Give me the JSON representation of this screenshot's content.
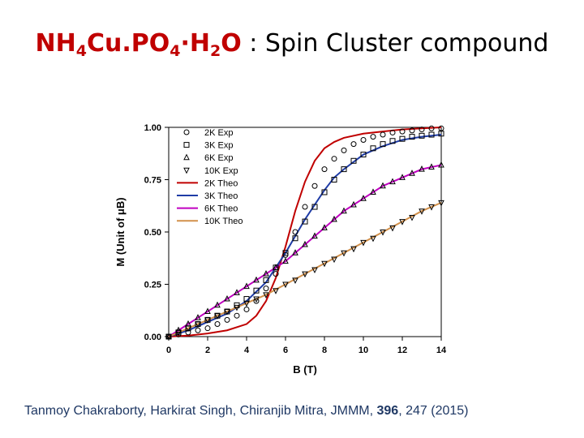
{
  "slide": {
    "title_formula": {
      "parts": [
        {
          "text": "NH",
          "sub": "4"
        },
        {
          "text": "Cu.PO",
          "sub": "4"
        },
        {
          "text": "·H",
          "sub": "2"
        },
        {
          "text": "O",
          "sub": ""
        }
      ]
    },
    "title_rest": " : Spin Cluster compound",
    "citation": {
      "authors": "Tanmoy Chakraborty, Harkirat Singh, Chiranjib Mitra, JMMM, ",
      "volume": "396",
      "pages": ", 247 (2015)"
    },
    "colors": {
      "title_formula": "#c00000",
      "citation": "#1f3864"
    }
  },
  "chart_data": {
    "type": "line",
    "xlabel": "B (T)",
    "ylabel": "M (Unit of μB)",
    "xlim": [
      0,
      14
    ],
    "ylim": [
      0,
      1
    ],
    "xticks": [
      0,
      2,
      4,
      6,
      8,
      10,
      12,
      14
    ],
    "yticks": [
      0.0,
      0.25,
      0.5,
      0.75,
      1.0
    ],
    "legend_position": "top-left",
    "series": [
      {
        "name": "2K Exp",
        "kind": "markers",
        "marker": "circle",
        "color": "#000000",
        "x": [
          0,
          0.5,
          1,
          1.5,
          2,
          2.5,
          3,
          3.5,
          4,
          4.5,
          5,
          5.5,
          6,
          6.5,
          7,
          7.5,
          8,
          8.5,
          9,
          9.5,
          10,
          10.5,
          11,
          11.5,
          12,
          12.5,
          13,
          13.5,
          14
        ],
        "y": [
          0,
          0.01,
          0.02,
          0.03,
          0.04,
          0.06,
          0.08,
          0.1,
          0.13,
          0.17,
          0.23,
          0.3,
          0.39,
          0.5,
          0.62,
          0.72,
          0.8,
          0.85,
          0.89,
          0.92,
          0.94,
          0.955,
          0.965,
          0.975,
          0.98,
          0.985,
          0.99,
          0.995,
          0.995
        ]
      },
      {
        "name": "3K Exp",
        "kind": "markers",
        "marker": "square",
        "color": "#000000",
        "x": [
          0,
          0.5,
          1,
          1.5,
          2,
          2.5,
          3,
          3.5,
          4,
          4.5,
          5,
          5.5,
          6,
          6.5,
          7,
          7.5,
          8,
          8.5,
          9,
          9.5,
          10,
          10.5,
          11,
          11.5,
          12,
          12.5,
          13,
          13.5,
          14
        ],
        "y": [
          0,
          0.02,
          0.04,
          0.06,
          0.08,
          0.1,
          0.12,
          0.15,
          0.18,
          0.22,
          0.27,
          0.33,
          0.4,
          0.47,
          0.55,
          0.62,
          0.69,
          0.75,
          0.8,
          0.84,
          0.87,
          0.9,
          0.92,
          0.935,
          0.945,
          0.955,
          0.96,
          0.965,
          0.97
        ]
      },
      {
        "name": "6K Exp",
        "kind": "markers",
        "marker": "triangle-up",
        "color": "#000000",
        "x": [
          0,
          0.5,
          1,
          1.5,
          2,
          2.5,
          3,
          3.5,
          4,
          4.5,
          5,
          5.5,
          6,
          6.5,
          7,
          7.5,
          8,
          8.5,
          9,
          9.5,
          10,
          10.5,
          11,
          11.5,
          12,
          12.5,
          13,
          13.5,
          14
        ],
        "y": [
          0,
          0.03,
          0.06,
          0.09,
          0.12,
          0.15,
          0.18,
          0.21,
          0.24,
          0.27,
          0.3,
          0.33,
          0.36,
          0.4,
          0.44,
          0.48,
          0.52,
          0.56,
          0.6,
          0.63,
          0.66,
          0.69,
          0.72,
          0.74,
          0.76,
          0.78,
          0.8,
          0.81,
          0.82
        ]
      },
      {
        "name": "10K Exp",
        "kind": "markers",
        "marker": "triangle-down",
        "color": "#000000",
        "x": [
          0,
          0.5,
          1,
          1.5,
          2,
          2.5,
          3,
          3.5,
          4,
          4.5,
          5,
          5.5,
          6,
          6.5,
          7,
          7.5,
          8,
          8.5,
          9,
          9.5,
          10,
          10.5,
          11,
          11.5,
          12,
          12.5,
          13,
          13.5,
          14
        ],
        "y": [
          0,
          0.02,
          0.04,
          0.06,
          0.08,
          0.1,
          0.12,
          0.14,
          0.16,
          0.18,
          0.2,
          0.22,
          0.25,
          0.27,
          0.3,
          0.32,
          0.35,
          0.37,
          0.4,
          0.42,
          0.45,
          0.47,
          0.5,
          0.52,
          0.55,
          0.57,
          0.6,
          0.62,
          0.64
        ]
      },
      {
        "name": "2K Theo",
        "kind": "line",
        "color": "#c00000",
        "x": [
          0,
          1,
          2,
          3,
          4,
          4.5,
          5,
          5.5,
          6,
          6.5,
          7,
          7.5,
          8,
          8.5,
          9,
          10,
          11,
          12,
          13,
          14
        ],
        "y": [
          0,
          0.005,
          0.015,
          0.03,
          0.06,
          0.1,
          0.17,
          0.28,
          0.43,
          0.6,
          0.74,
          0.84,
          0.9,
          0.93,
          0.95,
          0.97,
          0.98,
          0.99,
          0.995,
          1.0
        ]
      },
      {
        "name": "3K Theo",
        "kind": "line",
        "color": "#1f3ca6",
        "x": [
          0,
          1,
          2,
          3,
          4,
          5,
          5.5,
          6,
          6.5,
          7,
          7.5,
          8,
          8.5,
          9,
          10,
          11,
          12,
          13,
          14
        ],
        "y": [
          0,
          0.03,
          0.07,
          0.11,
          0.17,
          0.26,
          0.33,
          0.4,
          0.48,
          0.56,
          0.63,
          0.7,
          0.76,
          0.8,
          0.87,
          0.91,
          0.94,
          0.955,
          0.965
        ]
      },
      {
        "name": "6K Theo",
        "kind": "line",
        "color": "#c000c0",
        "x": [
          0,
          1,
          2,
          3,
          4,
          5,
          6,
          7,
          8,
          9,
          10,
          11,
          12,
          13,
          14
        ],
        "y": [
          0,
          0.06,
          0.12,
          0.18,
          0.24,
          0.3,
          0.36,
          0.44,
          0.52,
          0.6,
          0.66,
          0.72,
          0.76,
          0.8,
          0.82
        ]
      },
      {
        "name": "10K Theo",
        "kind": "line",
        "color": "#d2904a",
        "x": [
          0,
          1,
          2,
          3,
          4,
          5,
          6,
          7,
          8,
          9,
          10,
          11,
          12,
          13,
          14
        ],
        "y": [
          0,
          0.04,
          0.08,
          0.12,
          0.16,
          0.2,
          0.25,
          0.3,
          0.35,
          0.4,
          0.45,
          0.5,
          0.55,
          0.6,
          0.64
        ]
      }
    ]
  }
}
